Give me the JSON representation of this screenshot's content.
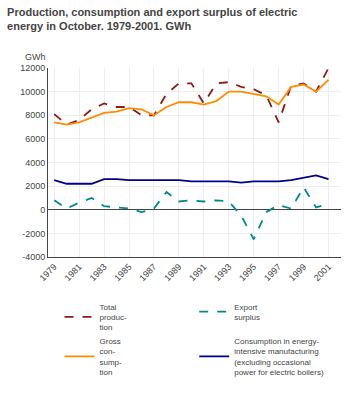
{
  "chart_data": {
    "type": "line",
    "title": "Production, consumption and export surplus of electric\nenergy in October. 1979-2001. GWh",
    "ylabel": "GWh",
    "x": [
      1979,
      1980,
      1981,
      1982,
      1983,
      1984,
      1985,
      1986,
      1987,
      1988,
      1989,
      1990,
      1991,
      1992,
      1993,
      1994,
      1995,
      1996,
      1997,
      1998,
      1999,
      2000,
      2001
    ],
    "series": [
      {
        "name": "Total\nproduc-\ntion",
        "color": "#8B1A1A",
        "line_style": "dashed",
        "values": [
          8100,
          7200,
          7600,
          8500,
          9000,
          8700,
          8700,
          8000,
          8000,
          9800,
          10700,
          10700,
          9000,
          10700,
          10800,
          10400,
          10200,
          9700,
          7400,
          10500,
          10700,
          10000,
          12000
        ]
      },
      {
        "name": "Export\nsurplus",
        "color": "#008B8B",
        "line_style": "dashed",
        "values": [
          800,
          100,
          600,
          1000,
          300,
          200,
          100,
          -200,
          100,
          1500,
          700,
          800,
          700,
          800,
          700,
          -500,
          -2500,
          -200,
          400,
          100,
          1900,
          200,
          500
        ]
      },
      {
        "name": "Gross\ncon-\nsump-\ntion",
        "color": "#FF8C00",
        "line_style": "solid",
        "values": [
          7400,
          7200,
          7400,
          7800,
          8200,
          8300,
          8600,
          8500,
          8000,
          8700,
          9100,
          9100,
          8900,
          9200,
          10000,
          10000,
          9800,
          9600,
          8900,
          10400,
          10600,
          10000,
          11000
        ]
      },
      {
        "name": "Consumption in energy-\nintensive manufacturing\n(excluding occasional\npower for electric boilers)",
        "color": "#00008B",
        "line_style": "solid",
        "values": [
          2500,
          2200,
          2200,
          2200,
          2600,
          2600,
          2500,
          2500,
          2500,
          2500,
          2500,
          2400,
          2400,
          2400,
          2400,
          2300,
          2400,
          2400,
          2400,
          2500,
          2700,
          2900,
          2600
        ]
      }
    ],
    "xlim": [
      1978.5,
      2002.0
    ],
    "xticks": [
      1979,
      1981,
      1983,
      1985,
      1987,
      1989,
      1991,
      1993,
      1995,
      1997,
      1999,
      2001
    ],
    "ylim": [
      -4000,
      12000
    ],
    "yticks": [
      -4000,
      -2000,
      0,
      2000,
      4000,
      6000,
      8000,
      10000,
      12000
    ],
    "grid": true,
    "legend": "bottom"
  }
}
